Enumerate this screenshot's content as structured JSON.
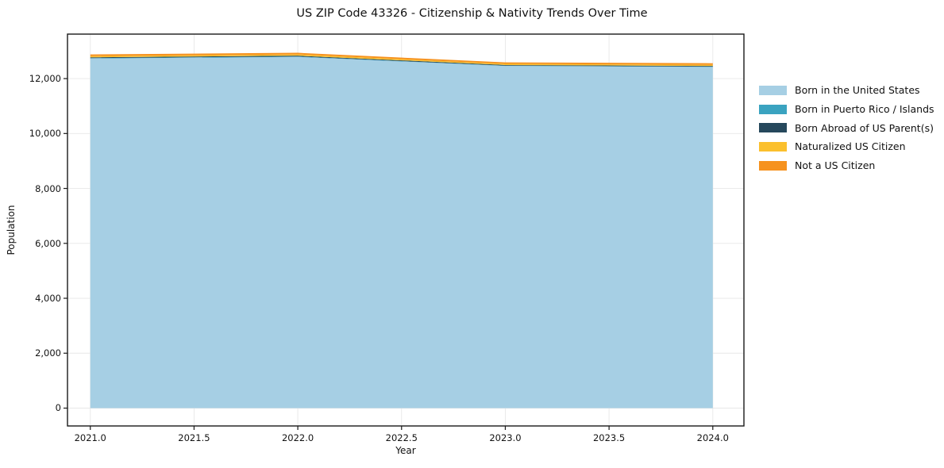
{
  "chart_data": {
    "type": "area",
    "title": "US ZIP Code 43326 - Citizenship & Nativity Trends Over Time",
    "xlabel": "Year",
    "ylabel": "Population",
    "stacked": true,
    "grid": true,
    "legend_position": "right-top",
    "x": [
      2021,
      2022,
      2023,
      2024
    ],
    "series": [
      {
        "name": "Born in the United States",
        "color": "#a6cfe4",
        "values": [
          12730,
          12790,
          12460,
          12425
        ]
      },
      {
        "name": "Born in Puerto Rico / Islands",
        "color": "#3aa3c0",
        "values": [
          15,
          15,
          10,
          10
        ]
      },
      {
        "name": "Born Abroad of US Parent(s)",
        "color": "#26485c",
        "values": [
          30,
          30,
          25,
          25
        ]
      },
      {
        "name": "Naturalized US Citizen",
        "color": "#fbc02d",
        "values": [
          45,
          45,
          40,
          40
        ]
      },
      {
        "name": "Not a US Citizen",
        "color": "#f6921e",
        "values": [
          60,
          60,
          55,
          60
        ]
      }
    ],
    "xlim": [
      2020.89,
      2024.15
    ],
    "ylim": [
      -650,
      13620
    ],
    "xticks": [
      2021.0,
      2021.5,
      2022.0,
      2022.5,
      2023.0,
      2023.5,
      2024.0
    ],
    "xtick_labels": [
      "2021.0",
      "2021.5",
      "2022.0",
      "2022.5",
      "2023.0",
      "2023.5",
      "2024.0"
    ],
    "yticks": [
      0,
      2000,
      4000,
      6000,
      8000,
      10000,
      12000
    ],
    "ytick_labels": [
      "0",
      "2,000",
      "4,000",
      "6,000",
      "8,000",
      "10,000",
      "12,000"
    ],
    "colors": {
      "grid": "#e7e7e7",
      "spine": "#1a1a1a",
      "background": "#ffffff"
    }
  }
}
